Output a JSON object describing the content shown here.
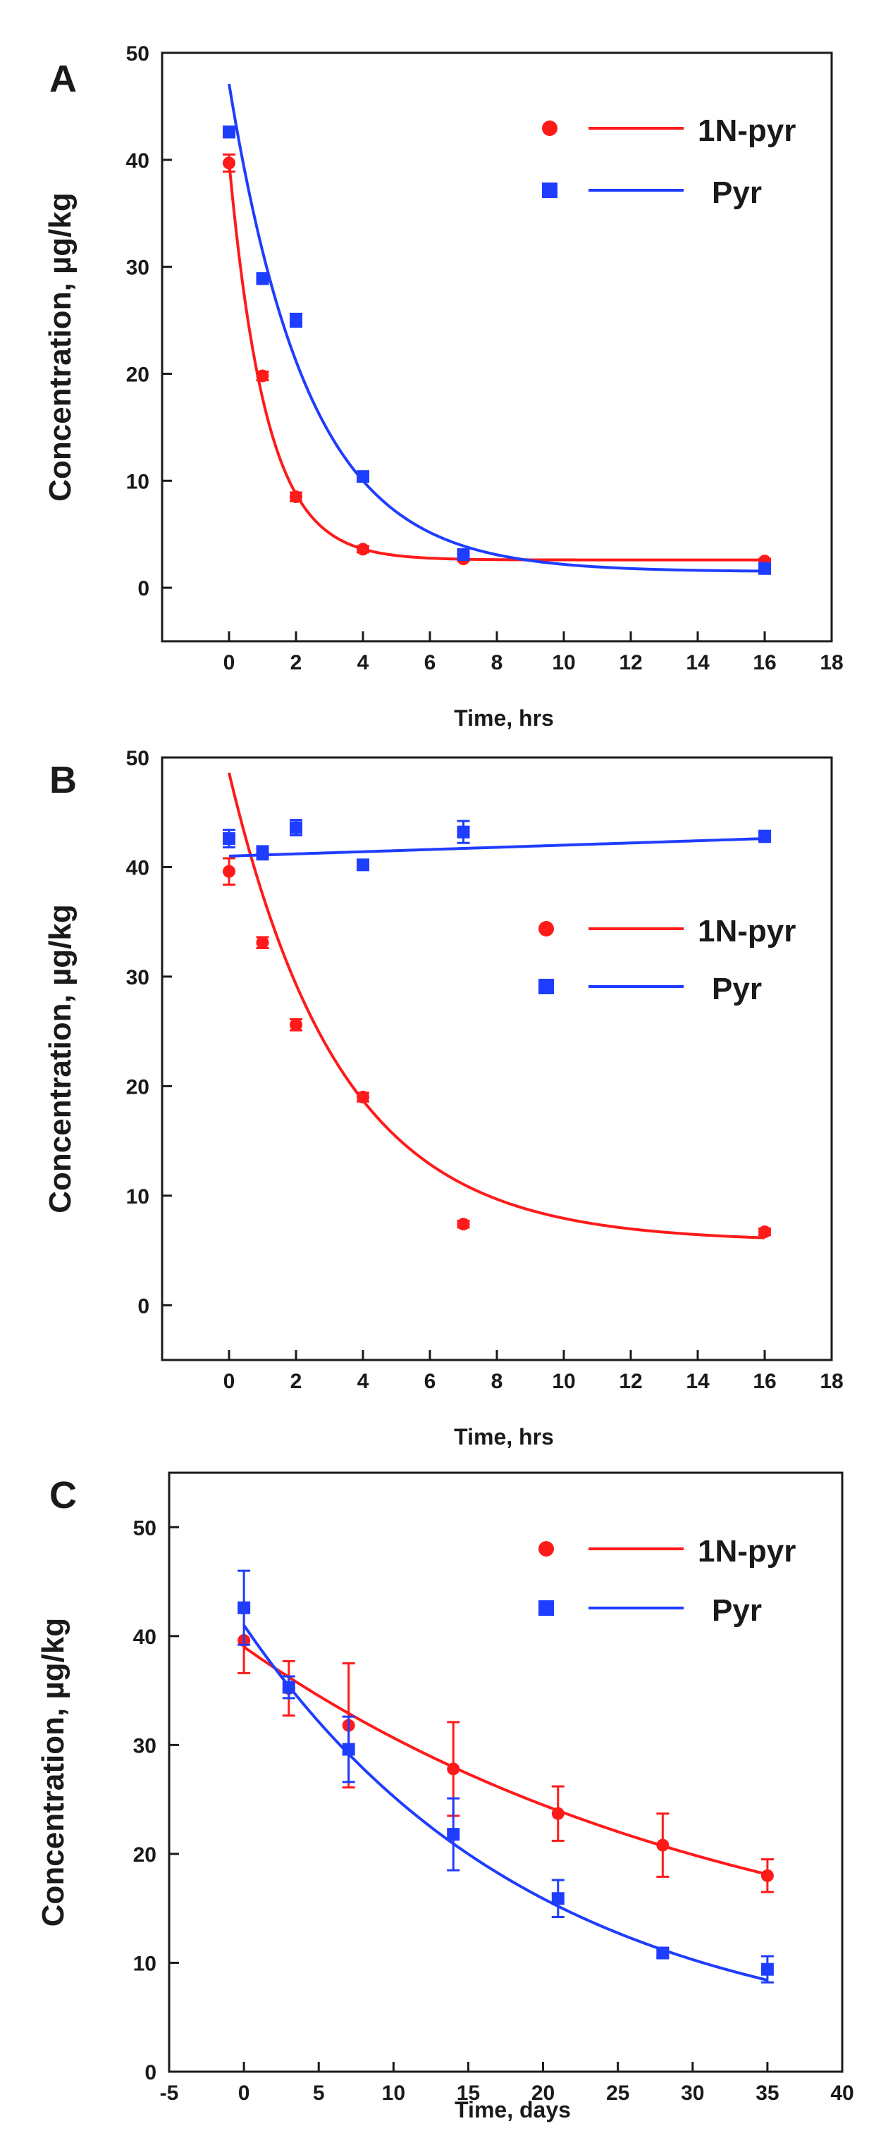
{
  "colors": {
    "red": "#ff1a1a",
    "blue": "#1f3dff",
    "axis": "#1a1a1a"
  },
  "chart_data": [
    {
      "type": "scatter",
      "panel_label": "A",
      "xlabel": "Time, hrs",
      "ylabel": "Concentration, µg/kg",
      "xlim": [
        -2,
        18
      ],
      "ylim": [
        -5,
        50
      ],
      "xticks": [
        0,
        2,
        4,
        6,
        8,
        10,
        12,
        14,
        16,
        18
      ],
      "yticks": [
        0,
        10,
        20,
        30,
        40,
        50
      ],
      "legend": [
        "1N-pyr",
        "Pyr"
      ],
      "series": [
        {
          "name": "1N-pyr",
          "color": "red",
          "marker": "circle",
          "points": [
            {
              "x": 0,
              "y": 39.7,
              "err": 0.8
            },
            {
              "x": 1,
              "y": 19.8,
              "err": 0.4
            },
            {
              "x": 2,
              "y": 8.5,
              "err": 0.4
            },
            {
              "x": 4,
              "y": 3.6,
              "err": 0.3
            },
            {
              "x": 7,
              "y": 2.7,
              "err": 0.2
            },
            {
              "x": 16,
              "y": 2.5,
              "err": 0.2
            }
          ],
          "fit": {
            "model": "exp_decay",
            "y0": 2.6,
            "A": 37.2,
            "k": 0.9
          }
        },
        {
          "name": "Pyr",
          "color": "blue",
          "marker": "square",
          "points": [
            {
              "x": 0,
              "y": 42.6,
              "err": 0.5
            },
            {
              "x": 1,
              "y": 28.9,
              "err": 0.5
            },
            {
              "x": 2,
              "y": 25.0,
              "err": 0.6
            },
            {
              "x": 4,
              "y": 10.4,
              "err": 0.4
            },
            {
              "x": 7,
              "y": 3.1,
              "err": 0.2
            },
            {
              "x": 16,
              "y": 1.8,
              "err": 0.2
            }
          ],
          "fit": {
            "model": "exp_decay",
            "y0": 1.5,
            "A": 45.6,
            "k": 0.42
          }
        }
      ]
    },
    {
      "type": "scatter",
      "panel_label": "B",
      "xlabel": "Time, hrs",
      "ylabel": "Concentration, µg/kg",
      "xlim": [
        -2,
        18
      ],
      "ylim": [
        -5,
        50
      ],
      "xticks": [
        0,
        2,
        4,
        6,
        8,
        10,
        12,
        14,
        16,
        18
      ],
      "yticks": [
        0,
        10,
        20,
        30,
        40,
        50
      ],
      "legend": [
        "1N-pyr",
        "Pyr"
      ],
      "series": [
        {
          "name": "1N-pyr",
          "color": "red",
          "marker": "circle",
          "points": [
            {
              "x": 0,
              "y": 39.6,
              "err": 1.2
            },
            {
              "x": 1,
              "y": 33.1,
              "err": 0.5
            },
            {
              "x": 2,
              "y": 25.6,
              "err": 0.5
            },
            {
              "x": 4,
              "y": 19.0,
              "err": 0.4
            },
            {
              "x": 7,
              "y": 7.4,
              "err": 0.3
            },
            {
              "x": 16,
              "y": 6.7,
              "err": 0.3
            }
          ],
          "fit": {
            "model": "exp_decay",
            "y0": 5.8,
            "A": 42.8,
            "k": 0.3
          }
        },
        {
          "name": "Pyr",
          "color": "blue",
          "marker": "square",
          "points": [
            {
              "x": 0,
              "y": 42.6,
              "err": 0.8
            },
            {
              "x": 1,
              "y": 41.3,
              "err": 0.6
            },
            {
              "x": 2,
              "y": 43.6,
              "err": 0.7
            },
            {
              "x": 4,
              "y": 40.2,
              "err": 0.4
            },
            {
              "x": 7,
              "y": 43.2,
              "err": 1.0
            },
            {
              "x": 16,
              "y": 42.8,
              "err": 0.5
            }
          ],
          "fit": {
            "model": "linear",
            "a": 41.0,
            "b": 0.1
          }
        }
      ]
    },
    {
      "type": "scatter",
      "panel_label": "C",
      "xlabel": "Time, days",
      "ylabel": "Concentration, µg/kg",
      "xlim": [
        -5,
        40
      ],
      "ylim": [
        0,
        55
      ],
      "xticks": [
        -5,
        0,
        5,
        10,
        15,
        20,
        25,
        30,
        35,
        40
      ],
      "yticks": [
        0,
        10,
        20,
        30,
        40,
        50
      ],
      "legend": [
        "1N-pyr",
        "Pyr"
      ],
      "series": [
        {
          "name": "1N-pyr",
          "color": "red",
          "marker": "circle",
          "points": [
            {
              "x": 0,
              "y": 39.6,
              "err": 3.0
            },
            {
              "x": 3,
              "y": 35.2,
              "err": 2.5
            },
            {
              "x": 7,
              "y": 31.8,
              "err": 5.7
            },
            {
              "x": 14,
              "y": 27.8,
              "err": 4.3
            },
            {
              "x": 21,
              "y": 23.7,
              "err": 2.5
            },
            {
              "x": 28,
              "y": 20.8,
              "err": 2.9
            },
            {
              "x": 35,
              "y": 18.0,
              "err": 1.5
            }
          ],
          "fit": {
            "model": "exp_decay",
            "y0": 7.0,
            "A": 32.0,
            "k": 0.0302
          }
        },
        {
          "name": "Pyr",
          "color": "blue",
          "marker": "square",
          "points": [
            {
              "x": 0,
              "y": 42.6,
              "err": 3.4
            },
            {
              "x": 3,
              "y": 35.3,
              "err": 1.0
            },
            {
              "x": 7,
              "y": 29.6,
              "err": 3.0
            },
            {
              "x": 14,
              "y": 21.8,
              "err": 3.3
            },
            {
              "x": 21,
              "y": 15.9,
              "err": 1.7
            },
            {
              "x": 28,
              "y": 10.9,
              "err": 0.4
            },
            {
              "x": 35,
              "y": 9.4,
              "err": 1.2
            }
          ],
          "fit": {
            "model": "exp_decay",
            "y0": 2.0,
            "A": 39.0,
            "k": 0.0516
          }
        }
      ]
    }
  ]
}
